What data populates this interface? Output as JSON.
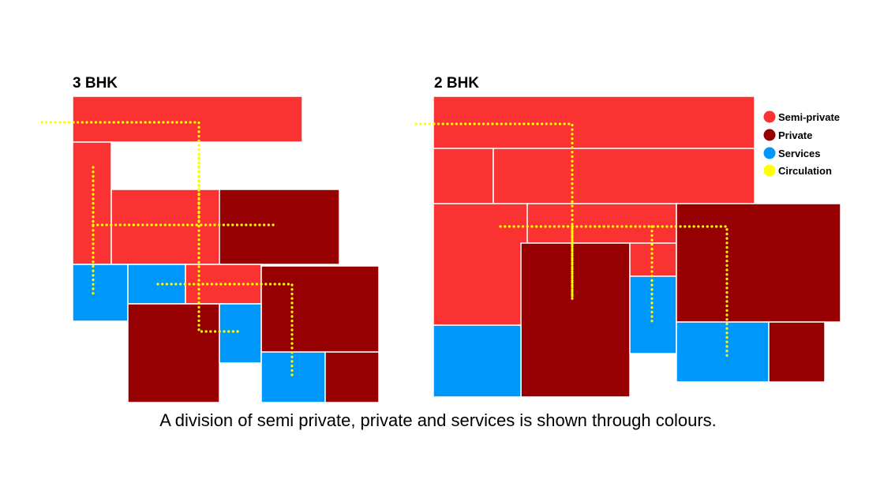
{
  "colors": {
    "semi_private": "#fb3232",
    "private": "#960000",
    "services": "#0097fb",
    "circulation": "#ffff00",
    "room_border": "#ffffff"
  },
  "plans": [
    {
      "title": "3 BHK",
      "rooms": [
        {
          "zone": "semi_private"
        },
        {
          "zone": "semi_private"
        },
        {
          "zone": "semi_private"
        },
        {
          "zone": "private"
        },
        {
          "zone": "services"
        },
        {
          "zone": "services"
        },
        {
          "zone": "private"
        },
        {
          "zone": "private"
        },
        {
          "zone": "services"
        },
        {
          "zone": "services"
        },
        {
          "zone": "private"
        }
      ],
      "circulation_paths": 5
    },
    {
      "title": "2 BHK",
      "rooms": [
        {
          "zone": "semi_private"
        },
        {
          "zone": "semi_private"
        },
        {
          "zone": "semi_private"
        },
        {
          "zone": "private"
        },
        {
          "zone": "services"
        },
        {
          "zone": "services"
        },
        {
          "zone": "private"
        },
        {
          "zone": "services"
        },
        {
          "zone": "private"
        }
      ],
      "circulation_paths": 4
    }
  ],
  "legend": [
    {
      "label": "Semi-private",
      "zone": "semi_private"
    },
    {
      "label": "Private",
      "zone": "private"
    },
    {
      "label": "Services",
      "zone": "services"
    },
    {
      "label": "Circulation",
      "zone": "circulation"
    }
  ],
  "caption": "A division of semi private, private and services is shown through colours."
}
